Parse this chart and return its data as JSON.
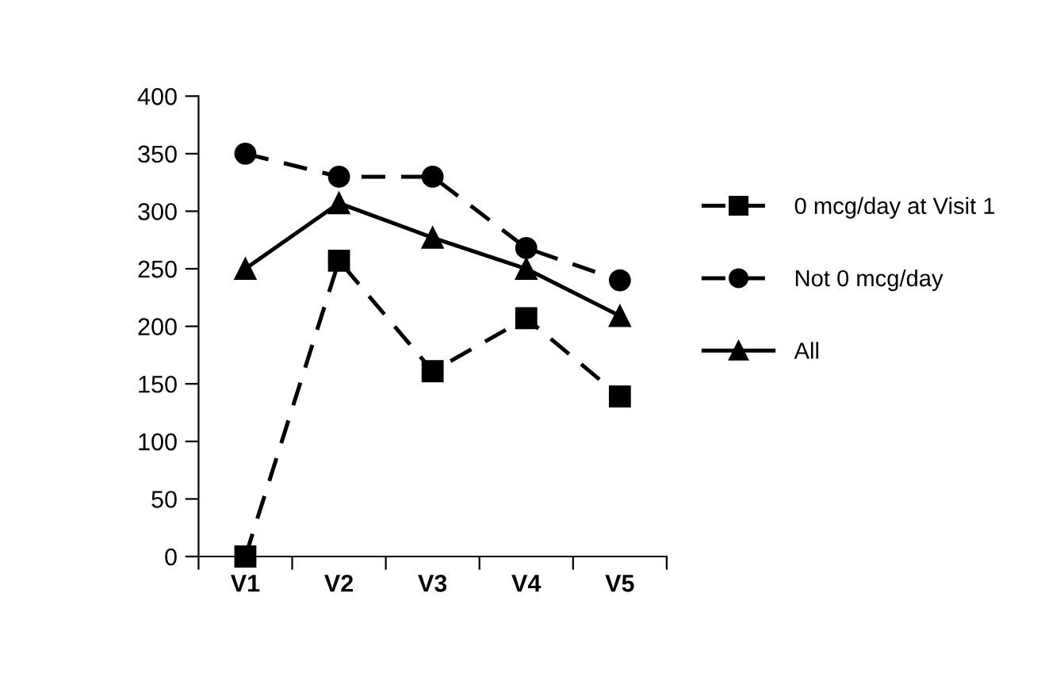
{
  "chart_data": {
    "type": "line",
    "categories": [
      "V1",
      "V2",
      "V3",
      "V4",
      "V5"
    ],
    "series": [
      {
        "name": "0 mcg/day at Visit 1",
        "color": "#000000",
        "marker": "square",
        "line_style": "dashed",
        "values": [
          0,
          257,
          161,
          207,
          139
        ]
      },
      {
        "name": "Not 0 mcg/day",
        "color": "#000000",
        "marker": "circle",
        "line_style": "dashed",
        "values": [
          350,
          330,
          330,
          268,
          240
        ]
      },
      {
        "name": "All",
        "color": "#000000",
        "marker": "triangle",
        "line_style": "solid",
        "values": [
          250,
          307,
          277,
          250,
          209
        ]
      }
    ],
    "ylim": [
      0,
      400
    ],
    "yticks": [
      0,
      50,
      100,
      150,
      200,
      250,
      300,
      350,
      400
    ],
    "grid": false,
    "legend": "right"
  }
}
